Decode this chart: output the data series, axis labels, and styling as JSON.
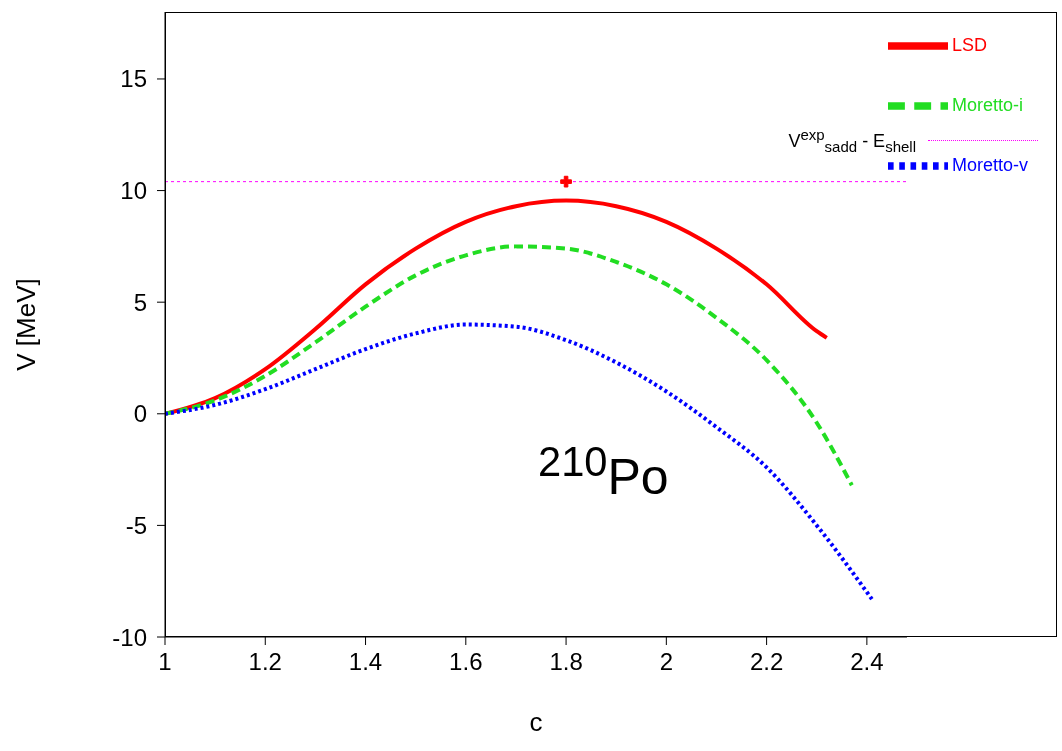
{
  "chart_data": {
    "type": "line",
    "xlabel": "c",
    "ylabel": "V  [MeV]",
    "xlim": [
      1,
      2.48
    ],
    "ylim": [
      -10,
      18
    ],
    "xticks": [
      1,
      1.2,
      1.4,
      1.6,
      1.8,
      2,
      2.2,
      2.4
    ],
    "yticks": [
      -10,
      -5,
      0,
      5,
      10,
      15
    ],
    "legend": "top right",
    "series": [
      {
        "name": "LSD",
        "color": "#ff0000",
        "line_style": "solid",
        "x": [
          1,
          1.1,
          1.2,
          1.3,
          1.4,
          1.5,
          1.6,
          1.7,
          1.8,
          1.9,
          2,
          2.1,
          2.2,
          2.3,
          2.32
        ],
        "values": [
          0,
          0.7,
          2,
          3.8,
          5.8,
          7.4,
          8.6,
          9.3,
          9.55,
          9.3,
          8.6,
          7.4,
          5.8,
          3.7,
          3.4
        ]
      },
      {
        "name": "Moretto-i",
        "color": "#22dd22",
        "line_style": "dashed",
        "x": [
          1,
          1.1,
          1.2,
          1.3,
          1.4,
          1.5,
          1.6,
          1.7,
          1.8,
          1.9,
          2,
          2.1,
          2.2,
          2.3,
          2.37
        ],
        "values": [
          0,
          0.6,
          1.7,
          3.2,
          4.8,
          6.2,
          7.1,
          7.5,
          7.4,
          6.8,
          5.8,
          4.3,
          2.4,
          -0.4,
          -3.2
        ]
      },
      {
        "name": "Moretto-v",
        "color": "#0000ff",
        "line_style": "dotted",
        "x": [
          1,
          1.1,
          1.2,
          1.3,
          1.4,
          1.5,
          1.6,
          1.7,
          1.8,
          1.9,
          2,
          2.1,
          2.2,
          2.3,
          2.41
        ],
        "values": [
          0,
          0.4,
          1.1,
          2,
          2.9,
          3.6,
          4,
          3.9,
          3.3,
          2.3,
          1,
          -0.6,
          -2.4,
          -5,
          -8.3
        ]
      },
      {
        "type": "scatter",
        "color": "#ff0000",
        "marker": "cross",
        "x": [
          1.8
        ],
        "values": [
          10.4
        ]
      }
    ],
    "ref_lines": [
      {
        "axis": "y",
        "value": 10.4,
        "label": "V$^{exp}$$_{sadd}$ - E$_{shell}$",
        "color": "#ff00ff",
        "line_style": "dotted"
      }
    ],
    "annotations": [
      "$^{210}$Po"
    ]
  }
}
